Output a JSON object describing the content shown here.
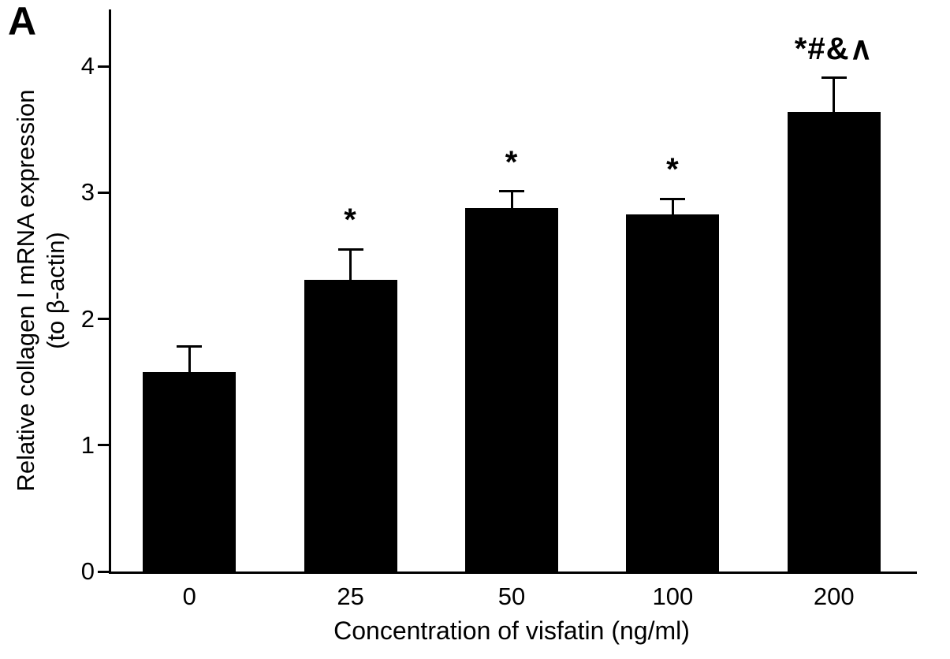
{
  "panel": {
    "label": "A"
  },
  "chart_data": {
    "type": "bar",
    "title": "",
    "categories": [
      "0",
      "25",
      "50",
      "100",
      "200"
    ],
    "values": [
      1.58,
      2.31,
      2.88,
      2.83,
      3.64
    ],
    "errors": [
      0.2,
      0.24,
      0.13,
      0.12,
      0.27
    ],
    "annotations": [
      "",
      "*",
      "*",
      "*",
      "*#&∧"
    ],
    "xlabel": "Concentration of visfatin (ng/ml)",
    "ylabel": "Relative collagen I mRNA expression",
    "ylabel_sub": "(to β-actin)",
    "ylim": [
      0,
      4.45
    ],
    "yticks": [
      0,
      1,
      2,
      3,
      4
    ],
    "bar_color": "#000000",
    "axis_color": "#000000",
    "grid": false,
    "legend": "none"
  }
}
